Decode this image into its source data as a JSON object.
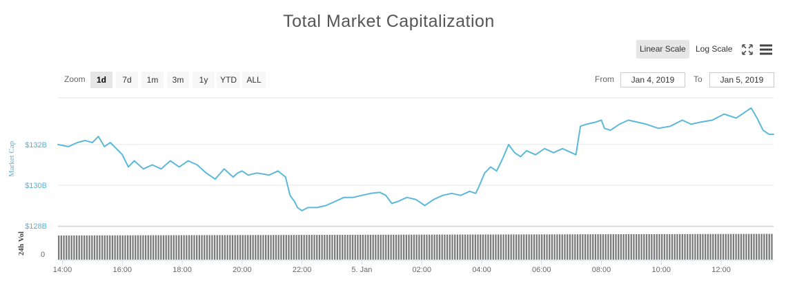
{
  "title": "Total Market Capitalization",
  "scale_toggle": {
    "linear_label": "Linear Scale",
    "log_label": "Log Scale",
    "active": "linear"
  },
  "icons": {
    "fullscreen": "fullscreen-icon",
    "menu": "hamburger-menu-icon"
  },
  "zoom": {
    "label": "Zoom",
    "options": [
      "1d",
      "7d",
      "1m",
      "3m",
      "1y",
      "YTD",
      "ALL"
    ],
    "active": "1d"
  },
  "range": {
    "from_label": "From",
    "from_value": "Jan 4, 2019",
    "to_label": "To",
    "to_value": "Jan 5, 2019"
  },
  "colors": {
    "line": "#5bb8da",
    "volume": "#7a7a7a",
    "grid": "#e6e6e6",
    "axis_label": "#4fb3d9"
  },
  "chart_data": [
    {
      "type": "line",
      "title": "Total Market Capitalization",
      "ylabel": "Market Cap",
      "y_ticks": [
        "$128B",
        "$130B",
        "$132B"
      ],
      "ylim": [
        128,
        134.3
      ],
      "y_unit": "billion USD",
      "x_ticks": [
        "14:00",
        "16:00",
        "18:00",
        "20:00",
        "22:00",
        "5. Jan",
        "02:00",
        "04:00",
        "06:00",
        "08:00",
        "10:00",
        "12:00"
      ],
      "x_tick_hours": [
        14,
        16,
        18,
        20,
        22,
        24,
        26,
        28,
        30,
        32,
        34,
        36
      ],
      "xlim_hours": [
        13.85,
        37.75
      ],
      "grid": true,
      "series": [
        {
          "x_hours": [
            13.85,
            14.2,
            14.5,
            14.75,
            15.0,
            15.2,
            15.4,
            15.6,
            15.8,
            16.0,
            16.2,
            16.4,
            16.7,
            17.0,
            17.3,
            17.6,
            17.9,
            18.2,
            18.5,
            18.8,
            19.1,
            19.4,
            19.7,
            19.85,
            20.0,
            20.2,
            20.5,
            20.9,
            21.2,
            21.45,
            21.6,
            21.75,
            21.85,
            22.0,
            22.2,
            22.5,
            22.8,
            23.1,
            23.4,
            23.7,
            24.0,
            24.3,
            24.6,
            24.8,
            25.0,
            25.2,
            25.5,
            25.8,
            26.1,
            26.4,
            26.7,
            27.0,
            27.3,
            27.6,
            27.8,
            27.9,
            28.1,
            28.3,
            28.5,
            28.7,
            28.9,
            29.1,
            29.3,
            29.5,
            29.8,
            30.1,
            30.4,
            30.7,
            31.0,
            31.15,
            31.3,
            31.5,
            31.8,
            32.0,
            32.1,
            32.3,
            32.6,
            32.9,
            33.2,
            33.5,
            33.9,
            34.3,
            34.7,
            35.0,
            35.3,
            35.7,
            36.1,
            36.5,
            36.8,
            37.0,
            37.2,
            37.4,
            37.6,
            37.75
          ],
          "y_values": [
            132.0,
            131.9,
            132.1,
            132.2,
            132.1,
            132.4,
            131.9,
            132.1,
            131.8,
            131.5,
            130.9,
            131.2,
            130.8,
            131.0,
            130.8,
            131.2,
            130.9,
            131.2,
            131.0,
            130.6,
            130.3,
            130.8,
            130.4,
            130.6,
            130.7,
            130.5,
            130.6,
            130.5,
            130.7,
            130.4,
            129.5,
            129.2,
            128.9,
            128.75,
            128.9,
            128.9,
            129.0,
            129.2,
            129.4,
            129.4,
            129.5,
            129.6,
            129.65,
            129.5,
            129.1,
            129.2,
            129.4,
            129.3,
            129.0,
            129.3,
            129.5,
            129.6,
            129.5,
            129.7,
            129.6,
            129.9,
            130.6,
            130.9,
            130.7,
            131.3,
            132.0,
            131.6,
            131.4,
            131.7,
            131.5,
            131.8,
            131.6,
            131.8,
            131.6,
            131.5,
            132.9,
            133.0,
            133.1,
            133.2,
            132.8,
            132.7,
            133.0,
            133.2,
            133.1,
            133.0,
            132.8,
            132.9,
            133.2,
            133.0,
            133.1,
            133.2,
            133.5,
            133.3,
            133.6,
            133.8,
            133.3,
            132.7,
            132.5,
            132.5
          ]
        }
      ]
    },
    {
      "type": "bar",
      "ylabel": "24h Vol",
      "y_ticks": [
        "0"
      ],
      "x_range_hours": [
        13.85,
        37.75
      ],
      "relative_volume_start": 0.9,
      "relative_volume_end": 0.96
    }
  ]
}
